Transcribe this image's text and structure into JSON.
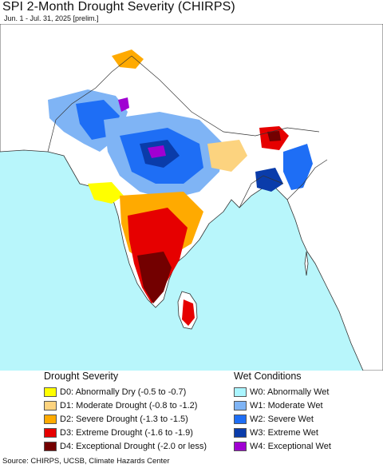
{
  "header": {
    "title": "SPI 2-Month Drought Severity (CHIRPS)",
    "subtitle": "Jun. 1 - Jul. 31, 2025 [prelim.]"
  },
  "map": {
    "ocean_color": "#b8f6fb",
    "land_color": "#ffffff",
    "border_color": "#333333"
  },
  "legend": {
    "drought": {
      "title": "Drought Severity",
      "items": [
        {
          "label": "D0: Abnormally Dry (-0.5 to -0.7)",
          "color": "#ffff00"
        },
        {
          "label": "D1: Moderate Drought (-0.8 to -1.2)",
          "color": "#fcd37f"
        },
        {
          "label": "D2: Severe Drought (-1.3 to -1.5)",
          "color": "#ffaa00"
        },
        {
          "label": "D3: Extreme Drought (-1.6 to -1.9)",
          "color": "#e60000"
        },
        {
          "label": "D4: Exceptional Drought (-2.0 or less)",
          "color": "#730000"
        }
      ]
    },
    "wet": {
      "title": "Wet Conditions",
      "items": [
        {
          "label": "W0: Abnormally Wet",
          "color": "#aaf5ff"
        },
        {
          "label": "W1: Moderate Wet",
          "color": "#7fb4f5"
        },
        {
          "label": "W2: Severe Wet",
          "color": "#1e6ef5"
        },
        {
          "label": "W3: Extreme Wet",
          "color": "#0a3caa"
        },
        {
          "label": "W4: Exceptional Wet",
          "color": "#a000d2"
        }
      ]
    }
  },
  "source": "Source: CHIRPS, UCSB, Climate Hazards Center"
}
